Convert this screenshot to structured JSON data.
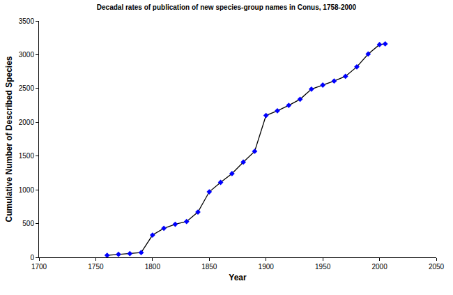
{
  "chart_data": {
    "type": "line",
    "title": "Decadal rates of publication of new species-group names in Conus, 1758-2000",
    "x_label": "Year",
    "y_label": "Cumulative Number of Described Species",
    "x": [
      1760,
      1770,
      1780,
      1790,
      1800,
      1810,
      1820,
      1830,
      1840,
      1850,
      1860,
      1870,
      1880,
      1890,
      1900,
      1910,
      1920,
      1930,
      1940,
      1950,
      1960,
      1970,
      1980,
      1990,
      2000,
      2005
    ],
    "values": [
      30,
      45,
      55,
      70,
      330,
      430,
      490,
      530,
      670,
      970,
      1110,
      1240,
      1410,
      1570,
      2100,
      2170,
      2250,
      2340,
      2490,
      2550,
      2610,
      2680,
      2820,
      3010,
      3150,
      3160
    ],
    "color": "#0000ff",
    "marker": "diamond",
    "line_style": "solid",
    "xlim": [
      1700,
      2050
    ],
    "xticks": [
      1700,
      1750,
      1800,
      1850,
      1900,
      1950,
      2000,
      2050
    ],
    "ylim": [
      0,
      3500
    ],
    "yticks": [
      0,
      500,
      1000,
      1500,
      2000,
      2500,
      3000,
      3500
    ],
    "grid": false
  }
}
